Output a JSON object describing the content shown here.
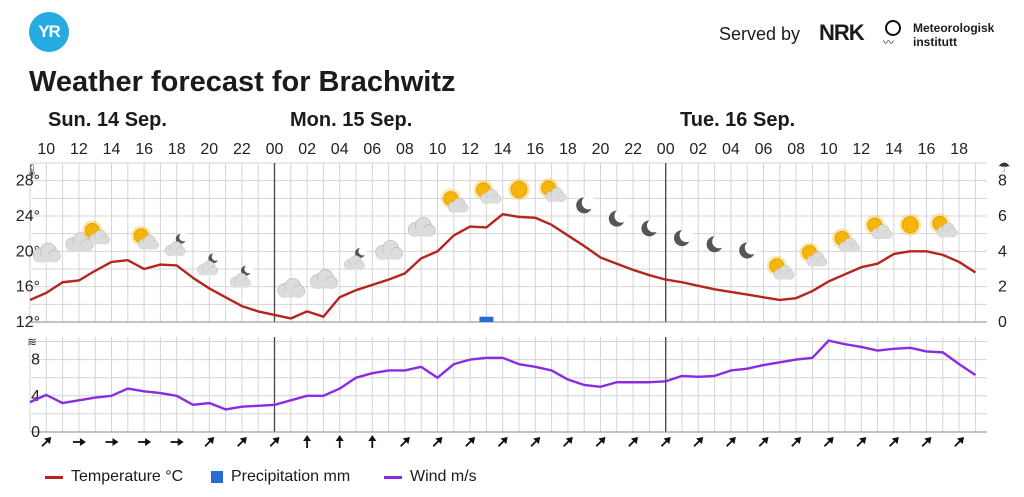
{
  "header": {
    "logo_text": "YR",
    "served_by": "Served by",
    "nrk_logo": "NRK",
    "met_line1": "Meteorologisk",
    "met_line2": "institutt"
  },
  "title": "Weather forecast for Brachwitz",
  "days": [
    "Sun. 14 Sep.",
    "Mon. 15 Sep.",
    "Tue. 16 Sep."
  ],
  "legend": {
    "temperature": "Temperature °C",
    "precipitation": "Precipitation mm",
    "wind": "Wind m/s"
  },
  "colors": {
    "temperature": "#b3261e",
    "precipitation": "#2a6bd0",
    "wind": "#8b2be2",
    "grid": "#d4d4d4"
  },
  "chart_data": [
    {
      "type": "line",
      "x_unit": "hour (0 = Sun. 14 Sep. 00:00)",
      "x_ticks": [
        "10",
        "12",
        "14",
        "16",
        "18",
        "20",
        "22",
        "00",
        "02",
        "04",
        "06",
        "08",
        "10",
        "12",
        "14",
        "16",
        "18",
        "20",
        "22",
        "00",
        "02",
        "04",
        "06",
        "08",
        "10",
        "12",
        "14",
        "16",
        "18"
      ],
      "temp_ylim": [
        12,
        30
      ],
      "temp_ticks": [
        "12°",
        "16°",
        "20°",
        "24°",
        "28°"
      ],
      "precip_ylim": [
        0,
        9
      ],
      "precip_ticks": [
        "0",
        "2",
        "4",
        "6",
        "8"
      ],
      "series": [
        {
          "name": "Temperature °C",
          "x": [
            9,
            10,
            11,
            12,
            13,
            14,
            15,
            16,
            17,
            18,
            19,
            20,
            21,
            22,
            23,
            24,
            25,
            26,
            27,
            28,
            29,
            30,
            31,
            32,
            33,
            34,
            35,
            36,
            37,
            38,
            39,
            40,
            41,
            42,
            43,
            44,
            45,
            46,
            47,
            48,
            49,
            50,
            51,
            52,
            53,
            54,
            55,
            56,
            57,
            58,
            59,
            60,
            61,
            62,
            63,
            64,
            65,
            66,
            67
          ],
          "values": [
            14.5,
            15.3,
            16.5,
            16.7,
            17.8,
            18.8,
            19.0,
            18.0,
            18.5,
            18.4,
            17.0,
            15.8,
            14.8,
            13.8,
            13.2,
            12.8,
            12.4,
            13.2,
            12.6,
            14.8,
            15.6,
            16.2,
            16.8,
            17.5,
            19.2,
            20.0,
            21.8,
            22.8,
            22.7,
            24.2,
            23.9,
            23.8,
            23.0,
            21.8,
            20.6,
            19.3,
            18.6,
            17.9,
            17.3,
            16.8,
            16.5,
            16.1,
            15.7,
            15.4,
            15.1,
            14.8,
            14.5,
            14.7,
            15.5,
            16.6,
            17.4,
            18.2,
            18.6,
            19.7,
            20.0,
            20.0,
            19.6,
            18.8,
            17.6
          ]
        },
        {
          "name": "Precipitation mm",
          "bars": [
            {
              "x": 37,
              "value": 0.3
            }
          ]
        }
      ],
      "icons": [
        {
          "x": 10,
          "y": 19.8,
          "icon": "cloud"
        },
        {
          "x": 12,
          "y": 21.0,
          "icon": "cloud"
        },
        {
          "x": 13,
          "y": 21.8,
          "icon": "partly-cloudy-day"
        },
        {
          "x": 16,
          "y": 21.2,
          "icon": "partly-cloudy-day"
        },
        {
          "x": 18,
          "y": 20.5,
          "icon": "partly-cloudy-night"
        },
        {
          "x": 20,
          "y": 18.3,
          "icon": "partly-cloudy-night"
        },
        {
          "x": 22,
          "y": 16.9,
          "icon": "partly-cloudy-night"
        },
        {
          "x": 25,
          "y": 15.8,
          "icon": "cloud"
        },
        {
          "x": 27,
          "y": 16.8,
          "icon": "cloud"
        },
        {
          "x": 29,
          "y": 18.9,
          "icon": "partly-cloudy-night"
        },
        {
          "x": 31,
          "y": 20.1,
          "icon": "cloud"
        },
        {
          "x": 33,
          "y": 22.7,
          "icon": "cloud"
        },
        {
          "x": 35,
          "y": 25.4,
          "icon": "partly-cloudy-day"
        },
        {
          "x": 37,
          "y": 26.4,
          "icon": "partly-cloudy-day"
        },
        {
          "x": 39,
          "y": 27.0,
          "icon": "sun"
        },
        {
          "x": 41,
          "y": 26.6,
          "icon": "partly-cloudy-day"
        },
        {
          "x": 43,
          "y": 25.2,
          "icon": "moon"
        },
        {
          "x": 45,
          "y": 23.7,
          "icon": "moon"
        },
        {
          "x": 47,
          "y": 22.6,
          "icon": "moon"
        },
        {
          "x": 49,
          "y": 21.5,
          "icon": "moon"
        },
        {
          "x": 51,
          "y": 20.8,
          "icon": "moon"
        },
        {
          "x": 53,
          "y": 20.1,
          "icon": "moon"
        },
        {
          "x": 55,
          "y": 17.8,
          "icon": "partly-cloudy-day"
        },
        {
          "x": 57,
          "y": 19.3,
          "icon": "partly-cloudy-day"
        },
        {
          "x": 59,
          "y": 20.9,
          "icon": "partly-cloudy-day"
        },
        {
          "x": 61,
          "y": 22.4,
          "icon": "partly-cloudy-day"
        },
        {
          "x": 63,
          "y": 23.0,
          "icon": "sun"
        },
        {
          "x": 65,
          "y": 22.6,
          "icon": "partly-cloudy-day"
        }
      ]
    },
    {
      "type": "line",
      "wind_ylim": [
        0,
        10.5
      ],
      "wind_ticks": [
        "0",
        "4",
        "8"
      ],
      "series": [
        {
          "name": "Wind m/s",
          "x": [
            9,
            10,
            11,
            12,
            13,
            14,
            15,
            16,
            17,
            18,
            19,
            20,
            21,
            22,
            23,
            24,
            25,
            26,
            27,
            28,
            29,
            30,
            31,
            32,
            33,
            34,
            35,
            36,
            37,
            38,
            39,
            40,
            41,
            42,
            43,
            44,
            45,
            46,
            47,
            48,
            49,
            50,
            51,
            52,
            53,
            54,
            55,
            56,
            57,
            58,
            59,
            60,
            61,
            62,
            63,
            64,
            65,
            66,
            67
          ],
          "values": [
            3.3,
            4.1,
            3.2,
            3.5,
            3.8,
            4.0,
            4.8,
            4.5,
            4.3,
            4.0,
            3.0,
            3.2,
            2.5,
            2.8,
            2.9,
            3.0,
            3.5,
            4.0,
            4.0,
            4.8,
            6.0,
            6.5,
            6.8,
            6.8,
            7.2,
            6.0,
            7.5,
            8.0,
            8.2,
            8.2,
            7.5,
            7.2,
            6.8,
            5.8,
            5.2,
            5.0,
            5.5,
            5.5,
            5.5,
            5.6,
            6.2,
            6.1,
            6.2,
            6.8,
            7.0,
            7.4,
            7.7,
            8.0,
            8.2,
            10.1,
            9.7,
            9.4,
            9.0,
            9.2,
            9.3,
            8.9,
            8.8,
            7.5,
            6.3
          ]
        }
      ],
      "wind_arrows": [
        {
          "x": 10,
          "direction_deg": 225
        },
        {
          "x": 12,
          "direction_deg": 270
        },
        {
          "x": 14,
          "direction_deg": 270
        },
        {
          "x": 16,
          "direction_deg": 270
        },
        {
          "x": 18,
          "direction_deg": 270
        },
        {
          "x": 20,
          "direction_deg": 225
        },
        {
          "x": 22,
          "direction_deg": 225
        },
        {
          "x": 24,
          "direction_deg": 225
        },
        {
          "x": 26,
          "direction_deg": 180
        },
        {
          "x": 28,
          "direction_deg": 180
        },
        {
          "x": 30,
          "direction_deg": 180
        },
        {
          "x": 32,
          "direction_deg": 225
        },
        {
          "x": 34,
          "direction_deg": 225
        },
        {
          "x": 36,
          "direction_deg": 225
        },
        {
          "x": 38,
          "direction_deg": 225
        },
        {
          "x": 40,
          "direction_deg": 225
        },
        {
          "x": 42,
          "direction_deg": 225
        },
        {
          "x": 44,
          "direction_deg": 225
        },
        {
          "x": 46,
          "direction_deg": 225
        },
        {
          "x": 48,
          "direction_deg": 225
        },
        {
          "x": 50,
          "direction_deg": 225
        },
        {
          "x": 52,
          "direction_deg": 225
        },
        {
          "x": 54,
          "direction_deg": 225
        },
        {
          "x": 56,
          "direction_deg": 225
        },
        {
          "x": 58,
          "direction_deg": 225
        },
        {
          "x": 60,
          "direction_deg": 225
        },
        {
          "x": 62,
          "direction_deg": 225
        },
        {
          "x": 64,
          "direction_deg": 225
        },
        {
          "x": 66,
          "direction_deg": 225
        }
      ]
    }
  ]
}
